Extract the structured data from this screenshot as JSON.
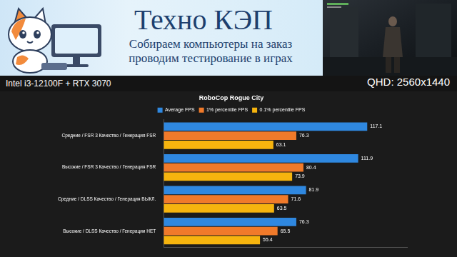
{
  "header": {
    "title": "Техно КЭП",
    "subtitle": [
      "Собираем компьютеры на заказ",
      "проводим тестирование в играх"
    ]
  },
  "system": "Intel i3-12100F + RTX 3070",
  "resolution": "QHD: 2560x1440",
  "chart_data": {
    "type": "bar",
    "title": "RoboCop Rogue City",
    "orientation": "horizontal",
    "categories": [
      "Средние / FSR 3 Качество / Генерация FSR",
      "Высокие / FSR 3 Качество / Генерация FSR",
      "Средние / DLSS Качество / Генерация ВЫКЛ.",
      "Высокие / DLSS Качество / Генерации НЕТ"
    ],
    "series": [
      {
        "name": "Average FPS",
        "color": "#2f88e0",
        "values": [
          117.1,
          111.9,
          81.9,
          76.3
        ]
      },
      {
        "name": "1% percentile FPS",
        "color": "#f07a2a",
        "values": [
          76.3,
          80.4,
          71.6,
          65.5
        ]
      },
      {
        "name": "0.1% percentile FPS",
        "color": "#f6b40e",
        "values": [
          63.1,
          73.9,
          63.5,
          55.4
        ]
      }
    ],
    "xlim": [
      0,
      140
    ],
    "grid": false,
    "legend": "top",
    "data_labels": true,
    "tick_labels": "y"
  }
}
